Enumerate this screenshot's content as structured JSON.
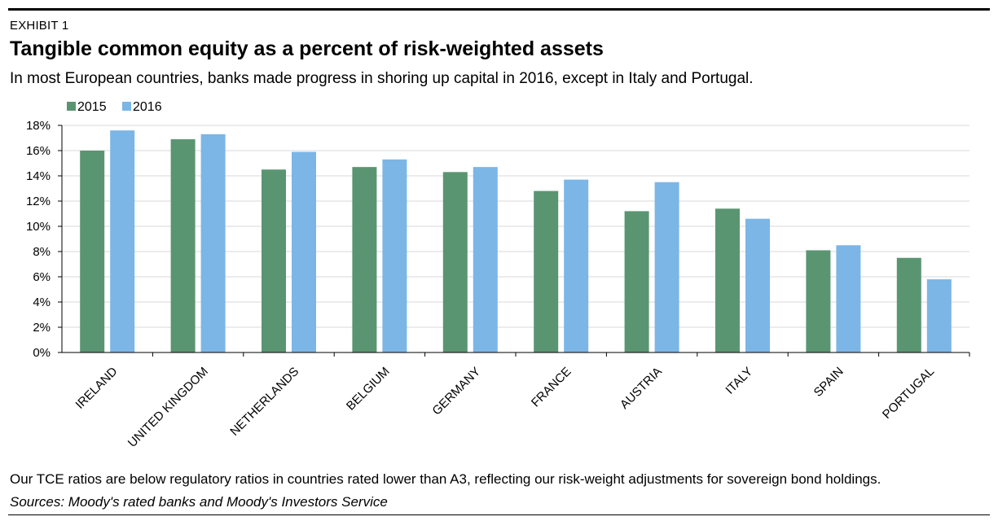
{
  "header": {
    "exhibit": "EXHIBIT 1",
    "title": "Tangible common equity as a percent of risk-weighted assets",
    "subtitle": "In most European countries, banks made progress in shoring up capital in 2016, except in Italy and Portugal."
  },
  "footer": {
    "note": "Our TCE ratios are below regulatory ratios in countries rated lower than A3, reflecting our risk-weight adjustments for sovereign bond holdings.",
    "source": "Sources: Moody's rated banks and Moody's Investors Service"
  },
  "chart_data": {
    "type": "bar",
    "title": "Tangible common equity as a percent of risk-weighted assets",
    "xlabel": "",
    "ylabel": "",
    "categories": [
      "IRELAND",
      "UNITED KINGDOM",
      "NETHERLANDS",
      "BELGIUM",
      "GERMANY",
      "FRANCE",
      "AUSTRIA",
      "ITALY",
      "SPAIN",
      "PORTUGAL"
    ],
    "series": [
      {
        "name": "2015",
        "color": "#5a9572",
        "values": [
          16.0,
          16.9,
          14.5,
          14.7,
          14.3,
          12.8,
          11.2,
          11.4,
          8.1,
          7.5
        ]
      },
      {
        "name": "2016",
        "color": "#7bb6e6",
        "values": [
          17.6,
          17.3,
          15.9,
          15.3,
          14.7,
          13.7,
          13.5,
          10.6,
          8.5,
          5.8
        ]
      }
    ],
    "ylim": [
      0,
      18
    ],
    "yticks": [
      "0%",
      "2%",
      "4%",
      "6%",
      "8%",
      "10%",
      "12%",
      "14%",
      "16%",
      "18%"
    ],
    "grid": true,
    "legend": "top-left"
  }
}
